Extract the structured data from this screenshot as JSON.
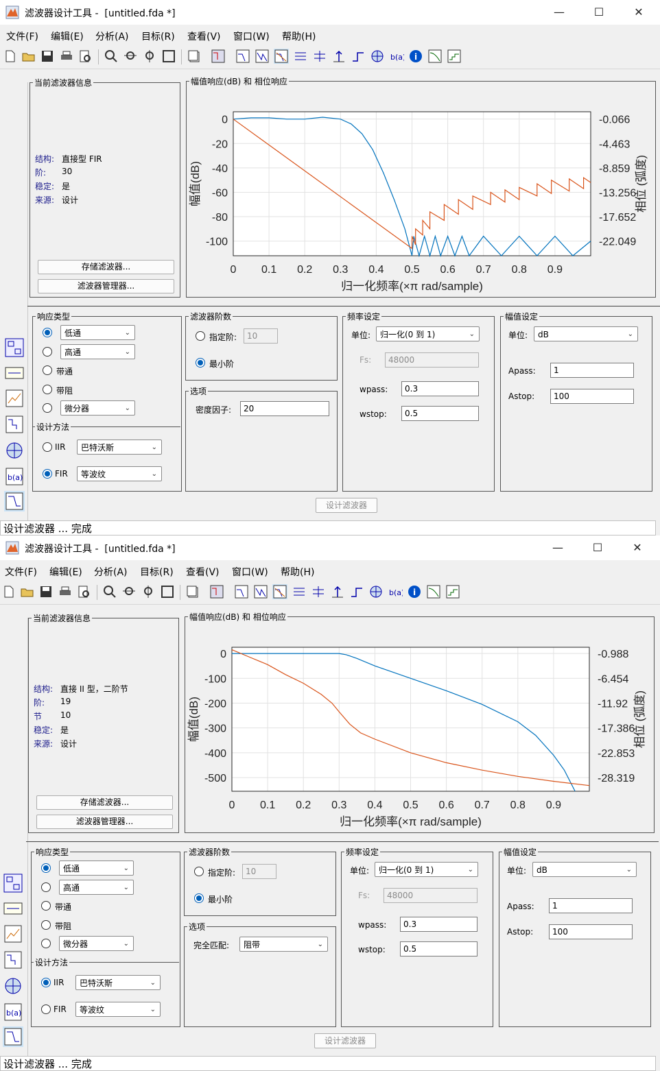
{
  "app": {
    "title": "滤波器设计工具 -  [untitled.fda *]",
    "menu": [
      "文件(F)",
      "编辑(E)",
      "分析(A)",
      "目标(R)",
      "查看(V)",
      "窗口(W)",
      "帮助(H)"
    ],
    "window_controls": {
      "minimize": "—",
      "maximize": "☐",
      "close": "✕"
    },
    "info_labels": {
      "group": "当前滤波器信息",
      "structure": "结构:",
      "order": "阶:",
      "sections": "节",
      "stable": "稳定:",
      "source": "来源:"
    },
    "buttons": {
      "store": "存储滤波器...",
      "manager": "滤波器管理器...",
      "design": "设计滤波器"
    },
    "response": {
      "group": "响应类型",
      "lowpass": "低通",
      "highpass": "高通",
      "bandpass": "带通",
      "bandstop": "带阻",
      "differentiator": "微分器"
    },
    "method": {
      "group": "设计方法",
      "iir": "IIR",
      "fir": "FIR",
      "iir_type": "巴特沃斯",
      "fir_type": "等波纹"
    },
    "order_group": {
      "group": "滤波器阶数",
      "specify": "指定阶:",
      "specify_value": "10",
      "minimum": "最小阶"
    },
    "options_group": "选项",
    "freq": {
      "group": "频率设定",
      "units_label": "单位:",
      "units": "归一化(0 到 1)",
      "fs_label": "Fs:",
      "fs": "48000",
      "wpass_label": "wpass:",
      "wpass": "0.3",
      "wstop_label": "wstop:",
      "wstop": "0.5"
    },
    "mag": {
      "group": "幅值设定",
      "units_label": "单位:",
      "units": "dB",
      "apass_label": "Apass:",
      "apass": "1",
      "astop_label": "Astop:",
      "astop": "100"
    },
    "status": "设计滤波器 ... 完成"
  },
  "windows": [
    {
      "info": {
        "structure": "直接型 FIR",
        "order": "30",
        "stable": "是",
        "source": "设计"
      },
      "options": {
        "label": "密度因子:",
        "value": "20"
      }
    },
    {
      "info": {
        "structure": "直接 II 型，二阶节",
        "order": "19",
        "sections": "10",
        "stable": "是",
        "source": "设计"
      },
      "options": {
        "label": "完全匹配:",
        "value": "阻带"
      }
    }
  ],
  "chart_data": [
    {
      "type": "line",
      "title": "幅值响应(dB) 和 相位响应",
      "xlabel": "归一化频率(×π rad/sample)",
      "ylabel": "幅值(dB)",
      "y2label": "相位 (弧度)",
      "xlim": [
        0,
        1
      ],
      "ylim": [
        -112,
        6
      ],
      "x_ticks": [
        "0",
        "0.1",
        "0.2",
        "0.3",
        "0.4",
        "0.5",
        "0.6",
        "0.7",
        "0.8",
        "0.9"
      ],
      "y_ticks": [
        "0",
        "-20",
        "-40",
        "-60",
        "-80",
        "-100"
      ],
      "y2_ticks": [
        "-0.066",
        "-4.463",
        "-8.859",
        "-13.256",
        "-17.652",
        "-22.049"
      ],
      "grid": true,
      "series": [
        {
          "color": "#0072bd",
          "x": [
            0,
            0.05,
            0.1,
            0.15,
            0.2,
            0.25,
            0.3,
            0.33,
            0.36,
            0.39,
            0.42,
            0.45,
            0.48,
            0.5,
            0.505,
            0.52,
            0.535,
            0.55,
            0.565,
            0.58,
            0.6,
            0.62,
            0.64,
            0.66,
            0.7,
            0.75,
            0.8,
            0.85,
            0.9,
            0.95,
            1.0
          ],
          "y": [
            0,
            1,
            1,
            0,
            0,
            1.5,
            0,
            -4,
            -12,
            -25,
            -44,
            -66,
            -90,
            -112,
            -96,
            -112,
            -96,
            -112,
            -96,
            -112,
            -96,
            -112,
            -96,
            -112,
            -96,
            -112,
            -96,
            -112,
            -96,
            -112,
            -100
          ]
        },
        {
          "color": "#d95319",
          "x": [
            0,
            0.5,
            0.5,
            0.5,
            0.51,
            0.51,
            0.53,
            0.53,
            0.55,
            0.55,
            0.59,
            0.59,
            0.63,
            0.63,
            0.67,
            0.67,
            0.72,
            0.72,
            0.76,
            0.76,
            0.8,
            0.8,
            0.85,
            0.85,
            0.89,
            0.89,
            0.94,
            0.94,
            0.98,
            0.98,
            1.0
          ],
          "y": [
            0,
            -106,
            -100,
            -96,
            -103,
            -90,
            -95,
            -83,
            -90,
            -76,
            -83,
            -70,
            -78,
            -66,
            -74,
            -63,
            -70,
            -60,
            -68,
            -58,
            -66,
            -56,
            -63,
            -53,
            -61,
            -50,
            -59,
            -49,
            -57,
            -48,
            -52
          ]
        }
      ]
    },
    {
      "type": "line",
      "title": "幅值响应(dB) 和 相位响应",
      "xlabel": "归一化频率(×π rad/sample)",
      "ylabel": "幅值(dB)",
      "y2label": "相位 (弧度)",
      "xlim": [
        0,
        1
      ],
      "ylim": [
        -555,
        25
      ],
      "x_ticks": [
        "0",
        "0.1",
        "0.2",
        "0.3",
        "0.4",
        "0.5",
        "0.6",
        "0.7",
        "0.8",
        "0.9"
      ],
      "y_ticks": [
        "0",
        "-100",
        "-200",
        "-300",
        "-400",
        "-500"
      ],
      "y2_ticks": [
        "-0.988",
        "-6.454",
        "-11.92",
        "-17.386",
        "-22.853",
        "-28.319"
      ],
      "grid": true,
      "series": [
        {
          "color": "#0072bd",
          "x": [
            0,
            0.1,
            0.2,
            0.3,
            0.32,
            0.35,
            0.4,
            0.5,
            0.6,
            0.7,
            0.8,
            0.85,
            0.9,
            0.93,
            0.96
          ],
          "y": [
            0,
            0,
            0,
            0,
            -5,
            -20,
            -50,
            -100,
            -150,
            -205,
            -275,
            -330,
            -410,
            -470,
            -555
          ]
        },
        {
          "color": "#d95319",
          "x": [
            0,
            0.05,
            0.1,
            0.15,
            0.2,
            0.25,
            0.28,
            0.3,
            0.33,
            0.36,
            0.4,
            0.5,
            0.6,
            0.7,
            0.8,
            0.9,
            1.0
          ],
          "y": [
            15,
            -15,
            -45,
            -85,
            -120,
            -165,
            -200,
            -235,
            -285,
            -320,
            -345,
            -400,
            -440,
            -470,
            -495,
            -515,
            -532
          ]
        }
      ]
    }
  ]
}
